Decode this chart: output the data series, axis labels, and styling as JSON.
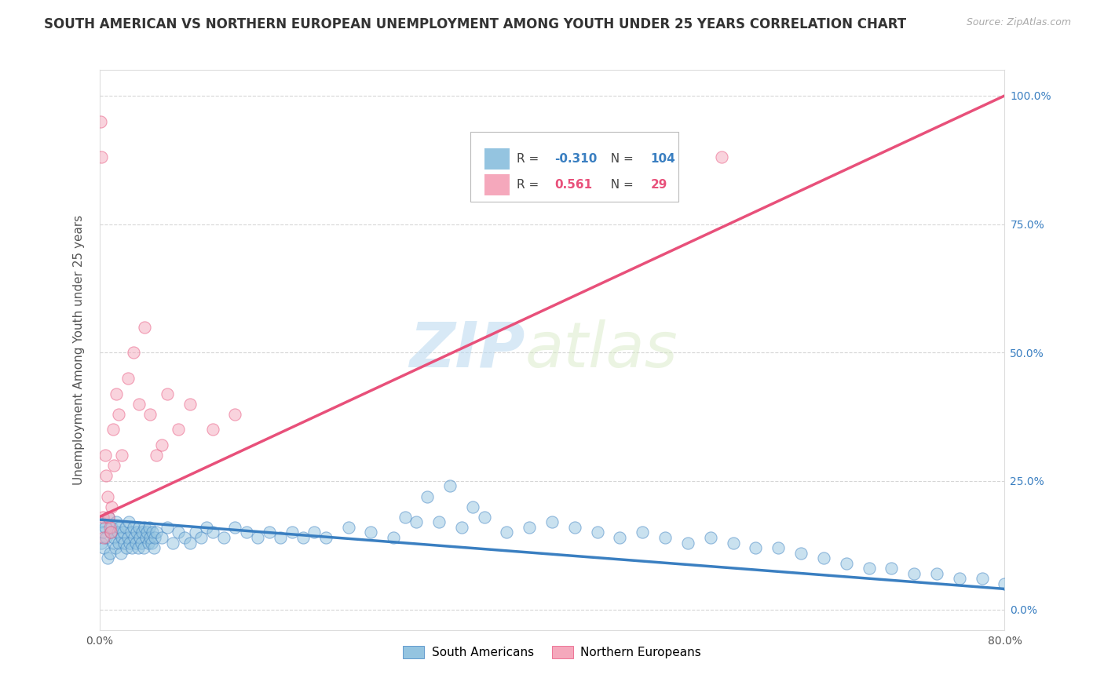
{
  "title": "SOUTH AMERICAN VS NORTHERN EUROPEAN UNEMPLOYMENT AMONG YOUTH UNDER 25 YEARS CORRELATION CHART",
  "source": "Source: ZipAtlas.com",
  "ylabel": "Unemployment Among Youth under 25 years",
  "blue_R": -0.31,
  "blue_N": 104,
  "pink_R": 0.561,
  "pink_N": 29,
  "blue_color": "#94c4e0",
  "pink_color": "#f5a8bc",
  "blue_line_color": "#3a7fc1",
  "pink_line_color": "#e8507a",
  "watermark_zip": "ZIP",
  "watermark_atlas": "atlas",
  "xlim": [
    0.0,
    0.8
  ],
  "ylim": [
    -0.04,
    1.05
  ],
  "xticks": [
    0.0,
    0.1,
    0.2,
    0.3,
    0.4,
    0.5,
    0.6,
    0.7,
    0.8
  ],
  "xticklabels": [
    "0.0%",
    "",
    "",
    "",
    "",
    "",
    "",
    "",
    "80.0%"
  ],
  "yticks": [
    0.0,
    0.25,
    0.5,
    0.75,
    1.0
  ],
  "yticklabels_right": [
    "0.0%",
    "25.0%",
    "50.0%",
    "75.0%",
    "100.0%"
  ],
  "blue_trend_x0": 0.0,
  "blue_trend_x1": 0.8,
  "blue_trend_y0": 0.175,
  "blue_trend_y1": 0.04,
  "pink_trend_x0": 0.0,
  "pink_trend_x1": 0.8,
  "pink_trend_y0": 0.18,
  "pink_trend_y1": 1.0,
  "legend_blue_label": "South Americans",
  "legend_pink_label": "Northern Europeans",
  "blue_scatter_x": [
    0.001,
    0.002,
    0.003,
    0.004,
    0.005,
    0.006,
    0.007,
    0.008,
    0.009,
    0.01,
    0.011,
    0.012,
    0.013,
    0.014,
    0.015,
    0.016,
    0.017,
    0.018,
    0.019,
    0.02,
    0.021,
    0.022,
    0.023,
    0.024,
    0.025,
    0.026,
    0.027,
    0.028,
    0.029,
    0.03,
    0.031,
    0.032,
    0.033,
    0.034,
    0.035,
    0.036,
    0.037,
    0.038,
    0.039,
    0.04,
    0.041,
    0.042,
    0.043,
    0.044,
    0.045,
    0.046,
    0.047,
    0.048,
    0.049,
    0.05,
    0.055,
    0.06,
    0.065,
    0.07,
    0.075,
    0.08,
    0.085,
    0.09,
    0.095,
    0.1,
    0.11,
    0.12,
    0.13,
    0.14,
    0.15,
    0.16,
    0.17,
    0.18,
    0.19,
    0.2,
    0.22,
    0.24,
    0.26,
    0.28,
    0.3,
    0.32,
    0.34,
    0.36,
    0.38,
    0.4,
    0.42,
    0.44,
    0.46,
    0.48,
    0.5,
    0.52,
    0.54,
    0.56,
    0.58,
    0.6,
    0.62,
    0.64,
    0.66,
    0.68,
    0.7,
    0.72,
    0.74,
    0.76,
    0.78,
    0.8,
    0.31,
    0.33,
    0.29,
    0.27
  ],
  "blue_scatter_y": [
    0.17,
    0.13,
    0.15,
    0.12,
    0.16,
    0.14,
    0.1,
    0.18,
    0.11,
    0.15,
    0.16,
    0.13,
    0.14,
    0.12,
    0.17,
    0.15,
    0.13,
    0.16,
    0.11,
    0.14,
    0.15,
    0.13,
    0.16,
    0.12,
    0.14,
    0.17,
    0.13,
    0.15,
    0.12,
    0.16,
    0.14,
    0.13,
    0.15,
    0.12,
    0.16,
    0.14,
    0.13,
    0.15,
    0.12,
    0.16,
    0.14,
    0.15,
    0.13,
    0.16,
    0.14,
    0.13,
    0.15,
    0.12,
    0.14,
    0.15,
    0.14,
    0.16,
    0.13,
    0.15,
    0.14,
    0.13,
    0.15,
    0.14,
    0.16,
    0.15,
    0.14,
    0.16,
    0.15,
    0.14,
    0.15,
    0.14,
    0.15,
    0.14,
    0.15,
    0.14,
    0.16,
    0.15,
    0.14,
    0.17,
    0.17,
    0.16,
    0.18,
    0.15,
    0.16,
    0.17,
    0.16,
    0.15,
    0.14,
    0.15,
    0.14,
    0.13,
    0.14,
    0.13,
    0.12,
    0.12,
    0.11,
    0.1,
    0.09,
    0.08,
    0.08,
    0.07,
    0.07,
    0.06,
    0.06,
    0.05,
    0.24,
    0.2,
    0.22,
    0.18
  ],
  "pink_scatter_x": [
    0.001,
    0.002,
    0.003,
    0.004,
    0.005,
    0.006,
    0.007,
    0.008,
    0.009,
    0.01,
    0.011,
    0.012,
    0.013,
    0.015,
    0.017,
    0.02,
    0.025,
    0.03,
    0.035,
    0.04,
    0.045,
    0.05,
    0.055,
    0.06,
    0.07,
    0.08,
    0.1,
    0.12,
    0.55
  ],
  "pink_scatter_y": [
    0.95,
    0.88,
    0.18,
    0.14,
    0.3,
    0.26,
    0.22,
    0.18,
    0.16,
    0.15,
    0.2,
    0.35,
    0.28,
    0.42,
    0.38,
    0.3,
    0.45,
    0.5,
    0.4,
    0.55,
    0.38,
    0.3,
    0.32,
    0.42,
    0.35,
    0.4,
    0.35,
    0.38,
    0.88
  ]
}
